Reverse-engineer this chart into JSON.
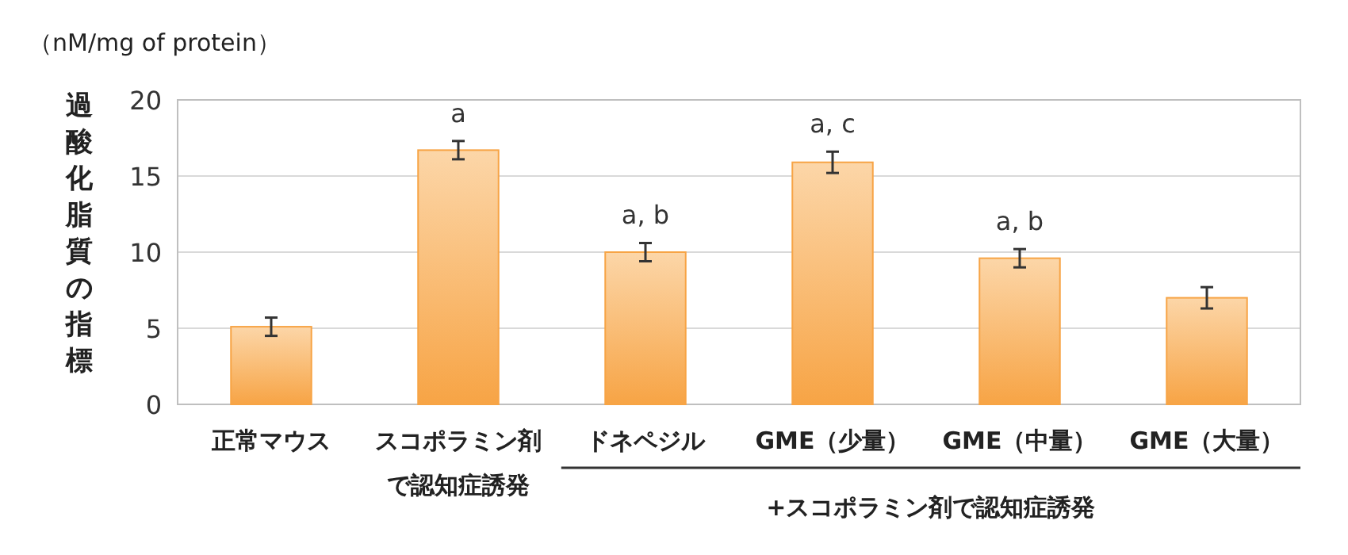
{
  "chart_data": {
    "type": "bar",
    "ylabel": "過酸化脂質の指標",
    "annotations": [
      "（nM/mg of protein）",
      "+スコポラミン剤で認知症誘発"
    ],
    "categories": [
      "正常マウス",
      "スコポラミン剤で認知症誘発",
      "ドネペジル",
      "GME（少量）",
      "GME（中量）",
      "GME（大量）"
    ],
    "values": [
      5.1,
      16.7,
      10.0,
      15.9,
      9.6,
      7.0
    ],
    "errors": [
      0.6,
      0.6,
      0.6,
      0.7,
      0.6,
      0.7
    ],
    "value_labels": [
      null,
      "a",
      "a, b",
      "a, c",
      "a, b",
      null
    ],
    "color": "#f7a445",
    "ylim": [
      0,
      20
    ],
    "yticks": [
      0,
      5,
      10,
      15,
      20
    ],
    "grid": "y"
  }
}
